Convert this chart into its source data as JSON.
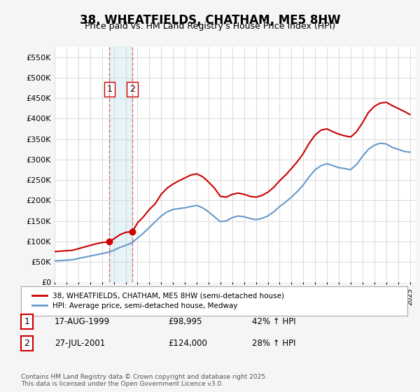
{
  "title": "38, WHEATFIELDS, CHATHAM, ME5 8HW",
  "subtitle": "Price paid vs. HM Land Registry's House Price Index (HPI)",
  "red_label": "38, WHEATFIELDS, CHATHAM, ME5 8HW (semi-detached house)",
  "blue_label": "HPI: Average price, semi-detached house, Medway",
  "footer": "Contains HM Land Registry data © Crown copyright and database right 2025.\nThis data is licensed under the Open Government Licence v3.0.",
  "transactions": [
    {
      "num": 1,
      "date": "17-AUG-1999",
      "price": 98995,
      "hpi_pct": "42% ↑ HPI",
      "x": 1999.63
    },
    {
      "num": 2,
      "date": "27-JUL-2001",
      "price": 124000,
      "hpi_pct": "28% ↑ HPI",
      "x": 2001.57
    }
  ],
  "vline_color": "#cc0000",
  "vline_alpha": 0.5,
  "shade_color": "#add8e6",
  "shade_alpha": 0.3,
  "ylim": [
    0,
    575000
  ],
  "yticks": [
    0,
    50000,
    100000,
    150000,
    200000,
    250000,
    300000,
    350000,
    400000,
    450000,
    500000,
    550000
  ],
  "ytick_labels": [
    "£0",
    "£50K",
    "£100K",
    "£150K",
    "£200K",
    "£250K",
    "£300K",
    "£350K",
    "£400K",
    "£450K",
    "£500K",
    "£550K"
  ],
  "red_line_color": "#cc0000",
  "blue_line_color": "#6699cc",
  "background_color": "#f5f5f5",
  "plot_bg_color": "#ffffff",
  "grid_color": "#dddddd",
  "red_data": {
    "x": [
      1995.0,
      1995.5,
      1996.0,
      1996.5,
      1997.0,
      1997.5,
      1998.0,
      1998.5,
      1999.0,
      1999.63,
      2000.0,
      2000.5,
      2001.0,
      2001.57,
      2002.0,
      2002.5,
      2003.0,
      2003.5,
      2004.0,
      2004.5,
      2005.0,
      2005.5,
      2006.0,
      2006.5,
      2007.0,
      2007.5,
      2008.0,
      2008.5,
      2009.0,
      2009.5,
      2010.0,
      2010.5,
      2011.0,
      2011.5,
      2012.0,
      2012.5,
      2013.0,
      2013.5,
      2014.0,
      2014.5,
      2015.0,
      2015.5,
      2016.0,
      2016.5,
      2017.0,
      2017.5,
      2018.0,
      2018.5,
      2019.0,
      2019.5,
      2020.0,
      2020.5,
      2021.0,
      2021.5,
      2022.0,
      2022.5,
      2023.0,
      2023.5,
      2024.0,
      2024.5,
      2025.0
    ],
    "y": [
      75000,
      76000,
      77000,
      78000,
      82000,
      86000,
      90000,
      94000,
      97000,
      98995,
      106000,
      116000,
      122000,
      124000,
      145000,
      160000,
      178000,
      192000,
      215000,
      230000,
      240000,
      248000,
      255000,
      262000,
      265000,
      258000,
      245000,
      230000,
      210000,
      208000,
      215000,
      218000,
      215000,
      210000,
      208000,
      212000,
      220000,
      232000,
      248000,
      262000,
      278000,
      295000,
      315000,
      340000,
      360000,
      372000,
      375000,
      368000,
      362000,
      358000,
      355000,
      368000,
      390000,
      415000,
      430000,
      438000,
      440000,
      432000,
      425000,
      418000,
      410000
    ]
  },
  "blue_data": {
    "x": [
      1995.0,
      1995.5,
      1996.0,
      1996.5,
      1997.0,
      1997.5,
      1998.0,
      1998.5,
      1999.0,
      1999.5,
      2000.0,
      2000.5,
      2001.0,
      2001.5,
      2002.0,
      2002.5,
      2003.0,
      2003.5,
      2004.0,
      2004.5,
      2005.0,
      2005.5,
      2006.0,
      2006.5,
      2007.0,
      2007.5,
      2008.0,
      2008.5,
      2009.0,
      2009.5,
      2010.0,
      2010.5,
      2011.0,
      2011.5,
      2012.0,
      2012.5,
      2013.0,
      2013.5,
      2014.0,
      2014.5,
      2015.0,
      2015.5,
      2016.0,
      2016.5,
      2017.0,
      2017.5,
      2018.0,
      2018.5,
      2019.0,
      2019.5,
      2020.0,
      2020.5,
      2021.0,
      2021.5,
      2022.0,
      2022.5,
      2023.0,
      2023.5,
      2024.0,
      2024.5,
      2025.0
    ],
    "y": [
      52000,
      53000,
      54000,
      55000,
      58000,
      61000,
      64000,
      67000,
      70000,
      73000,
      78000,
      85000,
      90000,
      96000,
      108000,
      120000,
      134000,
      148000,
      162000,
      172000,
      178000,
      180000,
      182000,
      185000,
      188000,
      182000,
      172000,
      160000,
      148000,
      150000,
      158000,
      162000,
      160000,
      156000,
      153000,
      156000,
      162000,
      172000,
      185000,
      196000,
      208000,
      222000,
      238000,
      258000,
      275000,
      285000,
      290000,
      285000,
      280000,
      278000,
      275000,
      288000,
      308000,
      325000,
      335000,
      340000,
      338000,
      330000,
      325000,
      320000,
      318000
    ]
  }
}
